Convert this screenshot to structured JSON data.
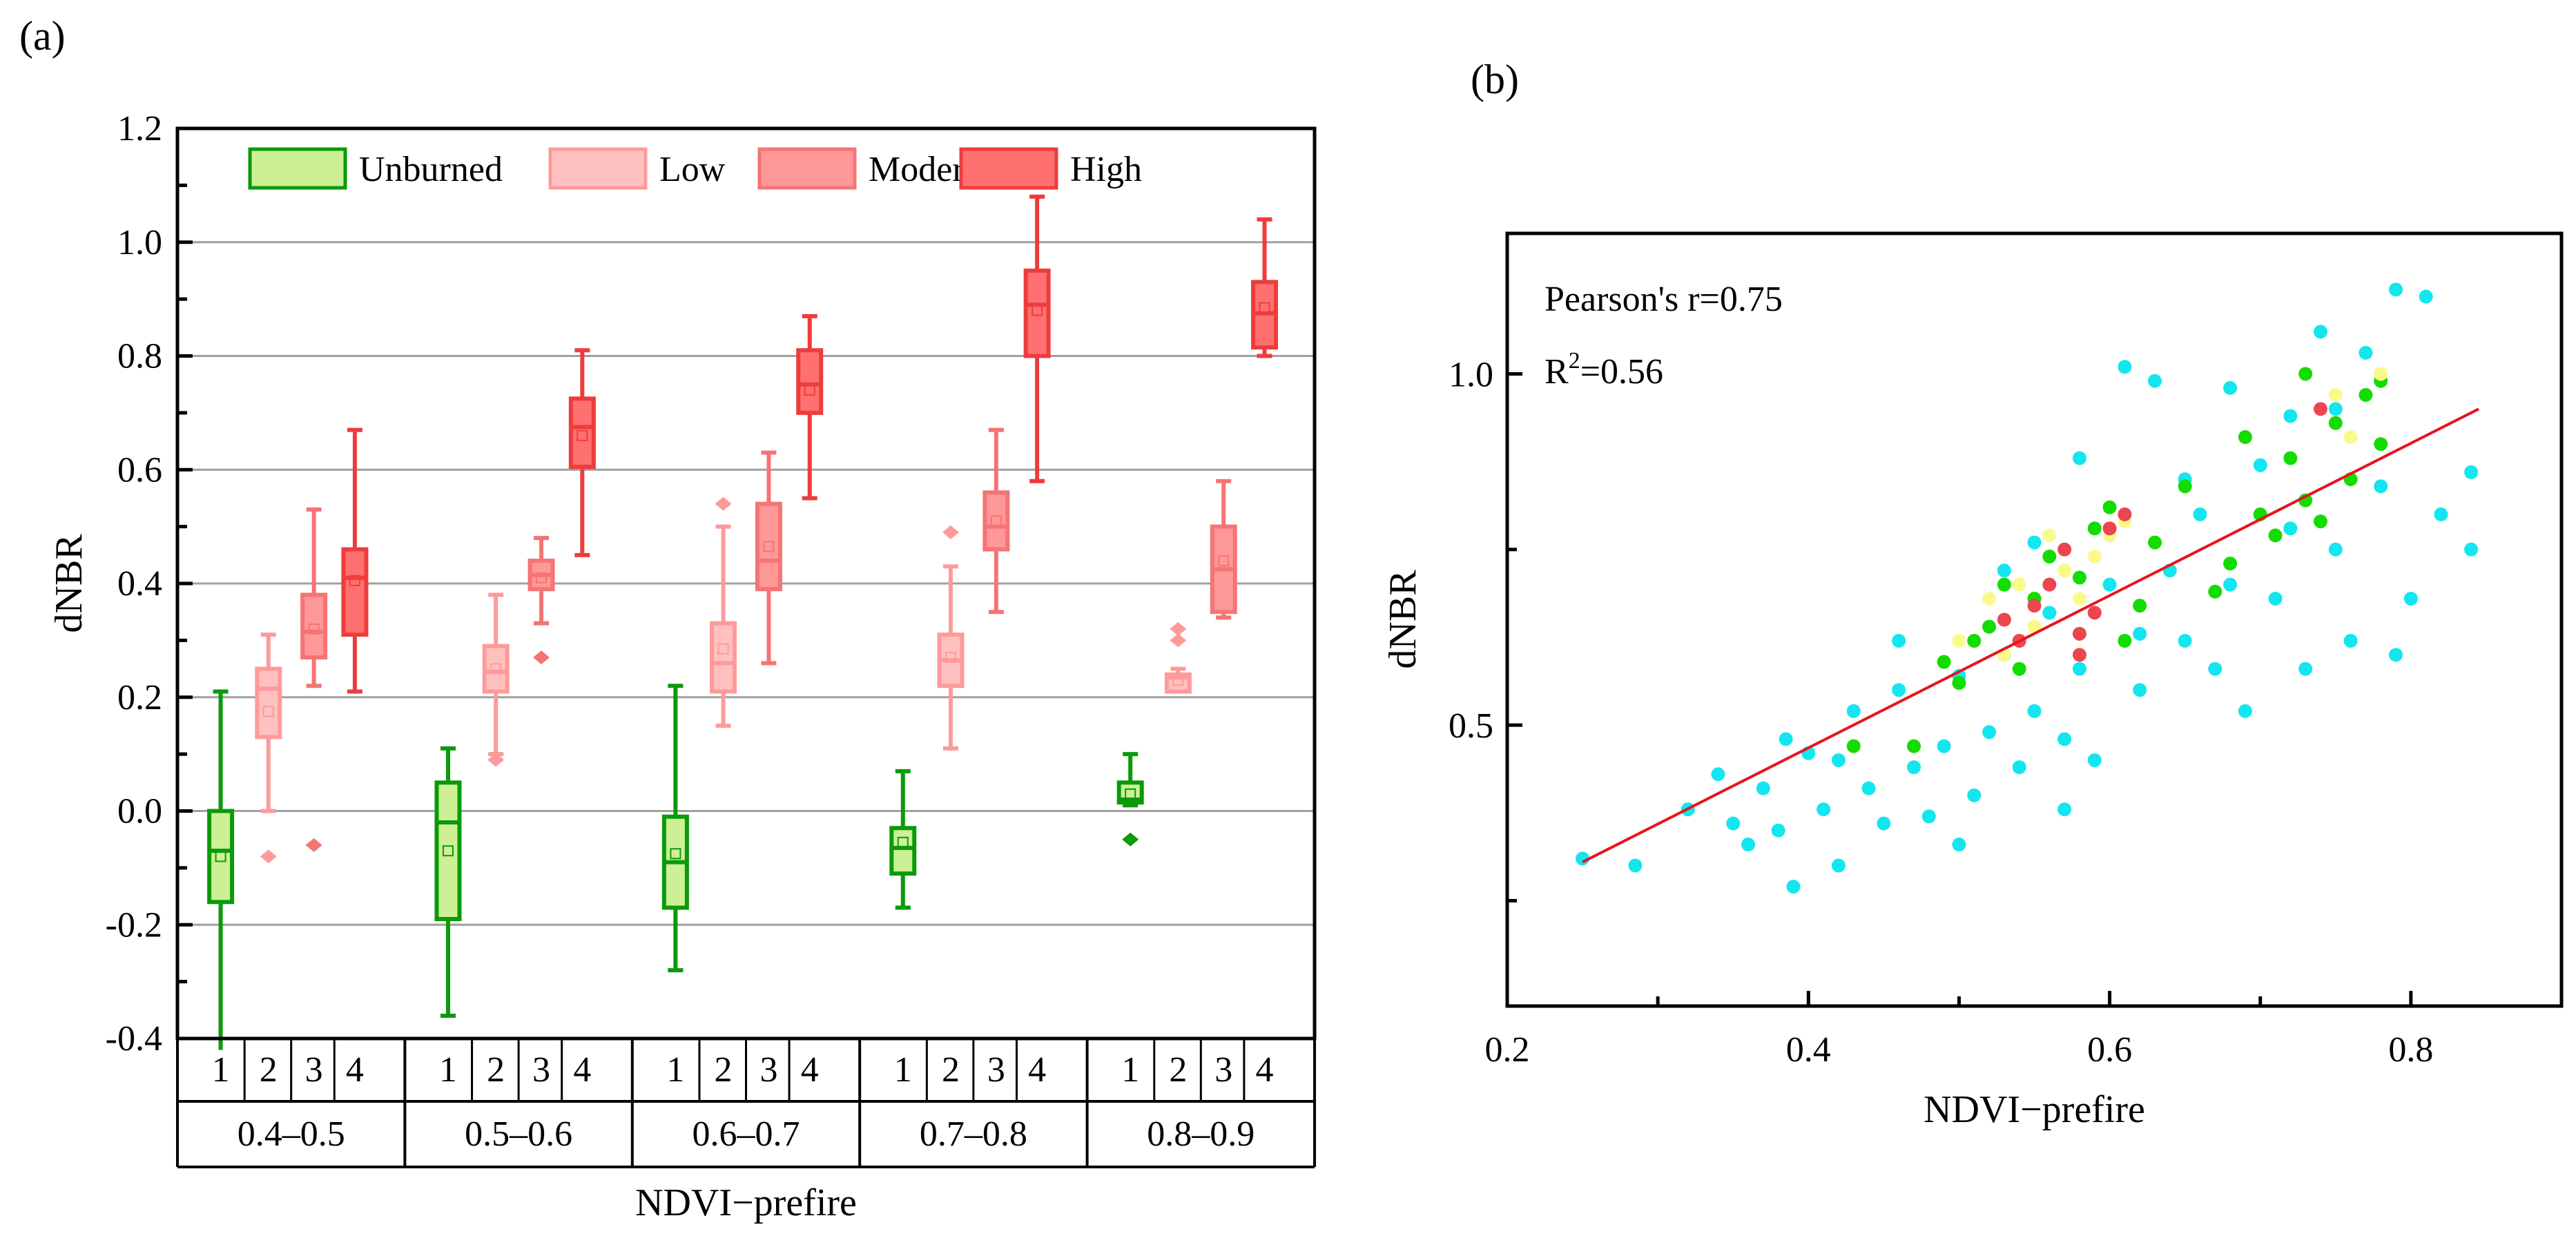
{
  "panel_a_label": "(a)",
  "panel_b_label": "(b)",
  "chart_data": [
    {
      "type": "box",
      "ylabel": "dNBR",
      "xlabel": "NDVI−prefire",
      "ylim": [
        -0.4,
        1.2
      ],
      "yticks": [
        "-0.4",
        "-0.2",
        "0.0",
        "0.2",
        "0.4",
        "0.6",
        "0.8",
        "1.0",
        "1.2"
      ],
      "grid": true,
      "legend": {
        "placement": "top",
        "entries": [
          "Unburned",
          "Low",
          "Moderate",
          "High"
        ]
      },
      "sub_categories": [
        "1",
        "2",
        "3",
        "4"
      ],
      "groups": [
        "0.4–0.5",
        "0.5–0.6",
        "0.6–0.7",
        "0.7–0.8",
        "0.8–0.9"
      ],
      "colors": {
        "Unburned": {
          "fill": "#cdf096",
          "stroke": "#0a9a0a"
        },
        "Low": {
          "fill": "#ffc0c0",
          "stroke": "#ff9a9a"
        },
        "Moderate": {
          "fill": "#ff9898",
          "stroke": "#f57474"
        },
        "High": {
          "fill": "#ff7070",
          "stroke": "#ee3c3c"
        }
      },
      "boxes": [
        [
          {
            "min": -0.42,
            "q1": -0.16,
            "median": -0.07,
            "q3": 0.0,
            "max": 0.21,
            "mean": -0.08,
            "outliers": []
          },
          {
            "min": 0.0,
            "q1": 0.13,
            "median": 0.215,
            "q3": 0.25,
            "max": 0.31,
            "mean": 0.175,
            "outliers": [
              -0.08
            ]
          },
          {
            "min": 0.22,
            "q1": 0.27,
            "median": 0.315,
            "q3": 0.38,
            "max": 0.53,
            "mean": 0.32,
            "outliers": [
              -0.06
            ]
          },
          {
            "min": 0.21,
            "q1": 0.31,
            "median": 0.41,
            "q3": 0.46,
            "max": 0.67,
            "mean": 0.405,
            "outliers": []
          }
        ],
        [
          {
            "min": -0.36,
            "q1": -0.19,
            "median": -0.02,
            "q3": 0.05,
            "max": 0.11,
            "mean": -0.07,
            "outliers": []
          },
          {
            "min": 0.1,
            "q1": 0.21,
            "median": 0.245,
            "q3": 0.29,
            "max": 0.38,
            "mean": 0.25,
            "outliers": [
              0.09
            ]
          },
          {
            "min": 0.33,
            "q1": 0.39,
            "median": 0.415,
            "q3": 0.44,
            "max": 0.48,
            "mean": 0.41,
            "outliers": [
              0.27
            ]
          },
          {
            "min": 0.45,
            "q1": 0.605,
            "median": 0.675,
            "q3": 0.725,
            "max": 0.81,
            "mean": 0.66,
            "outliers": []
          }
        ],
        [
          {
            "min": -0.28,
            "q1": -0.17,
            "median": -0.09,
            "q3": -0.01,
            "max": 0.22,
            "mean": -0.075,
            "outliers": []
          },
          {
            "min": 0.15,
            "q1": 0.21,
            "median": 0.26,
            "q3": 0.33,
            "max": 0.5,
            "mean": 0.285,
            "outliers": [
              0.54
            ]
          },
          {
            "min": 0.26,
            "q1": 0.39,
            "median": 0.44,
            "q3": 0.54,
            "max": 0.63,
            "mean": 0.465,
            "outliers": []
          },
          {
            "min": 0.55,
            "q1": 0.7,
            "median": 0.75,
            "q3": 0.81,
            "max": 0.87,
            "mean": 0.74,
            "outliers": []
          }
        ],
        [
          {
            "min": -0.17,
            "q1": -0.11,
            "median": -0.065,
            "q3": -0.03,
            "max": 0.07,
            "mean": -0.055,
            "outliers": []
          },
          {
            "min": 0.11,
            "q1": 0.22,
            "median": 0.265,
            "q3": 0.31,
            "max": 0.43,
            "mean": 0.27,
            "outliers": [
              0.49
            ]
          },
          {
            "min": 0.35,
            "q1": 0.46,
            "median": 0.5,
            "q3": 0.56,
            "max": 0.67,
            "mean": 0.51,
            "outliers": []
          },
          {
            "min": 0.58,
            "q1": 0.8,
            "median": 0.89,
            "q3": 0.95,
            "max": 1.08,
            "mean": 0.88,
            "outliers": []
          }
        ],
        [
          {
            "min": 0.01,
            "q1": 0.015,
            "median": 0.02,
            "q3": 0.05,
            "max": 0.1,
            "mean": 0.03,
            "outliers": [
              -0.05
            ]
          },
          {
            "min": 0.21,
            "q1": 0.21,
            "median": 0.235,
            "q3": 0.24,
            "max": 0.25,
            "mean": 0.23,
            "outliers": [
              0.3,
              0.32
            ]
          },
          {
            "min": 0.34,
            "q1": 0.35,
            "median": 0.425,
            "q3": 0.5,
            "max": 0.58,
            "mean": 0.44,
            "outliers": []
          },
          {
            "min": 0.8,
            "q1": 0.815,
            "median": 0.875,
            "q3": 0.93,
            "max": 1.04,
            "mean": 0.885,
            "outliers": []
          }
        ]
      ]
    },
    {
      "type": "scatter",
      "xlabel": "NDVI−prefire",
      "ylabel": "dNBR",
      "xlim": [
        0.2,
        0.9
      ],
      "ylim": [
        0.1,
        1.2
      ],
      "xticks": [
        "0.2",
        "0.4",
        "0.6",
        "0.8"
      ],
      "yticks": [
        "0.5",
        "1.0"
      ],
      "annotations": {
        "pearson": "Pearson's r=0.75",
        "r2_prefix": "R",
        "r2_sup": "2",
        "r2_value": "=0.56"
      },
      "fit_line": {
        "x": [
          0.25,
          0.845
        ],
        "y": [
          0.305,
          0.95
        ],
        "color": "#e8141e"
      },
      "series": [
        {
          "name": "cyan",
          "color": "#14e6f0",
          "points": [
            [
              0.25,
              0.31
            ],
            [
              0.285,
              0.3
            ],
            [
              0.32,
              0.38
            ],
            [
              0.34,
              0.43
            ],
            [
              0.35,
              0.36
            ],
            [
              0.36,
              0.33
            ],
            [
              0.37,
              0.41
            ],
            [
              0.38,
              0.35
            ],
            [
              0.385,
              0.48
            ],
            [
              0.39,
              0.27
            ],
            [
              0.4,
              0.46
            ],
            [
              0.41,
              0.38
            ],
            [
              0.42,
              0.3
            ],
            [
              0.43,
              0.52
            ],
            [
              0.44,
              0.41
            ],
            [
              0.45,
              0.36
            ],
            [
              0.46,
              0.55
            ],
            [
              0.47,
              0.44
            ],
            [
              0.48,
              0.37
            ],
            [
              0.49,
              0.47
            ],
            [
              0.5,
              0.57
            ],
            [
              0.51,
              0.4
            ],
            [
              0.52,
              0.49
            ],
            [
              0.53,
              0.6
            ],
            [
              0.54,
              0.44
            ],
            [
              0.55,
              0.52
            ],
            [
              0.56,
              0.66
            ],
            [
              0.57,
              0.48
            ],
            [
              0.58,
              0.58
            ],
            [
              0.59,
              0.45
            ],
            [
              0.6,
              0.7
            ],
            [
              0.61,
              1.01
            ],
            [
              0.62,
              0.55
            ],
            [
              0.63,
              0.99
            ],
            [
              0.64,
              0.72
            ],
            [
              0.65,
              0.62
            ],
            [
              0.66,
              0.8
            ],
            [
              0.67,
              0.58
            ],
            [
              0.68,
              0.98
            ],
            [
              0.69,
              0.52
            ],
            [
              0.7,
              0.87
            ],
            [
              0.71,
              0.68
            ],
            [
              0.72,
              0.94
            ],
            [
              0.73,
              0.58
            ],
            [
              0.74,
              1.06
            ],
            [
              0.75,
              0.75
            ],
            [
              0.76,
              0.62
            ],
            [
              0.77,
              1.03
            ],
            [
              0.78,
              0.84
            ],
            [
              0.79,
              1.12
            ],
            [
              0.8,
              0.68
            ],
            [
              0.81,
              1.11
            ],
            [
              0.82,
              0.8
            ],
            [
              0.84,
              0.86
            ],
            [
              0.84,
              0.75
            ],
            [
              0.55,
              0.76
            ],
            [
              0.58,
              0.88
            ],
            [
              0.46,
              0.62
            ],
            [
              0.53,
              0.72
            ],
            [
              0.65,
              0.85
            ],
            [
              0.72,
              0.78
            ],
            [
              0.79,
              0.6
            ],
            [
              0.68,
              0.7
            ],
            [
              0.75,
              0.95
            ],
            [
              0.62,
              0.63
            ],
            [
              0.57,
              0.38
            ],
            [
              0.5,
              0.33
            ],
            [
              0.42,
              0.45
            ]
          ]
        },
        {
          "name": "green",
          "color": "#14dc00",
          "points": [
            [
              0.43,
              0.47
            ],
            [
              0.47,
              0.47
            ],
            [
              0.49,
              0.59
            ],
            [
              0.51,
              0.62
            ],
            [
              0.52,
              0.64
            ],
            [
              0.53,
              0.7
            ],
            [
              0.55,
              0.68
            ],
            [
              0.56,
              0.74
            ],
            [
              0.58,
              0.71
            ],
            [
              0.59,
              0.78
            ],
            [
              0.6,
              0.81
            ],
            [
              0.62,
              0.67
            ],
            [
              0.63,
              0.76
            ],
            [
              0.65,
              0.84
            ],
            [
              0.68,
              0.73
            ],
            [
              0.7,
              0.8
            ],
            [
              0.71,
              0.77
            ],
            [
              0.72,
              0.88
            ],
            [
              0.73,
              0.82
            ],
            [
              0.74,
              0.79
            ],
            [
              0.75,
              0.93
            ],
            [
              0.76,
              0.85
            ],
            [
              0.77,
              0.97
            ],
            [
              0.78,
              0.99
            ],
            [
              0.73,
              1.0
            ],
            [
              0.69,
              0.91
            ],
            [
              0.54,
              0.58
            ],
            [
              0.61,
              0.62
            ],
            [
              0.5,
              0.56
            ],
            [
              0.67,
              0.69
            ],
            [
              0.78,
              0.9
            ]
          ]
        },
        {
          "name": "yellow",
          "color": "#fafa8c",
          "points": [
            [
              0.52,
              0.68
            ],
            [
              0.54,
              0.7
            ],
            [
              0.55,
              0.64
            ],
            [
              0.57,
              0.72
            ],
            [
              0.58,
              0.68
            ],
            [
              0.59,
              0.74
            ],
            [
              0.6,
              0.77
            ],
            [
              0.61,
              0.79
            ],
            [
              0.5,
              0.62
            ],
            [
              0.53,
              0.6
            ],
            [
              0.75,
              0.97
            ],
            [
              0.78,
              1.0
            ],
            [
              0.76,
              0.91
            ],
            [
              0.56,
              0.77
            ]
          ]
        },
        {
          "name": "red",
          "color": "#eb4650",
          "points": [
            [
              0.53,
              0.65
            ],
            [
              0.54,
              0.62
            ],
            [
              0.56,
              0.7
            ],
            [
              0.57,
              0.75
            ],
            [
              0.58,
              0.63
            ],
            [
              0.59,
              0.66
            ],
            [
              0.6,
              0.78
            ],
            [
              0.61,
              0.8
            ],
            [
              0.55,
              0.67
            ],
            [
              0.74,
              0.95
            ],
            [
              0.58,
              0.6
            ]
          ]
        }
      ]
    }
  ]
}
